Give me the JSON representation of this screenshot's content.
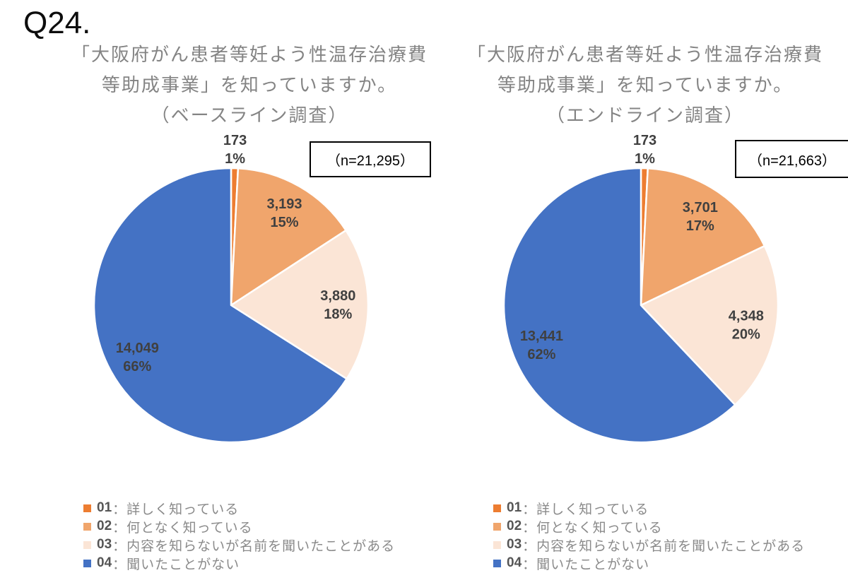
{
  "question_label": "Q24.",
  "styles": {
    "slice_label_color": "#404040",
    "title_color": "#848484",
    "box_border_color": "#000000"
  },
  "legend": {
    "items": [
      {
        "num": "01",
        "text": "：詳しく知っている",
        "color": "#ED7D31"
      },
      {
        "num": "02",
        "text": "：何となく知っている",
        "color": "#F0A56C"
      },
      {
        "num": "03",
        "text": "：内容を知らないが名前を聞いたことがある",
        "color": "#FBE5D6"
      },
      {
        "num": "04",
        "text": "：聞いたことがない",
        "color": "#4472C4"
      }
    ]
  },
  "chart_data": [
    {
      "type": "pie",
      "title_lines": [
        "「大阪府がん患者等妊よう性温存治療費",
        "等助成事業」を知っていますか。",
        "（ベースライン調査）"
      ],
      "n_label": "（n=21,295）",
      "n": 21295,
      "categories": [
        "01：詳しく知っている",
        "02：何となく知っている",
        "03：内容を知らないが名前を聞いたことがある",
        "04：聞いたことがない"
      ],
      "values": [
        173,
        3193,
        3880,
        14049
      ],
      "value_labels": [
        "173",
        "3,193",
        "3,880",
        "14,049"
      ],
      "pct_labels": [
        "1%",
        "15%",
        "18%",
        "66%"
      ],
      "colors": [
        "#ED7D31",
        "#F0A56C",
        "#FBE5D6",
        "#4472C4"
      ],
      "start_angle_deg": 0,
      "direction": "clockwise",
      "legend_position": "bottom-left"
    },
    {
      "type": "pie",
      "title_lines": [
        "「大阪府がん患者等妊よう性温存治療費",
        "等助成事業」を知っていますか。",
        "（エンドライン調査）"
      ],
      "n_label": "（n=21,663）",
      "n": 21663,
      "categories": [
        "01：詳しく知っている",
        "02：何となく知っている",
        "03：内容を知らないが名前を聞いたことがある",
        "04：聞いたことがない"
      ],
      "values": [
        173,
        3701,
        4348,
        13441
      ],
      "value_labels": [
        "173",
        "3,701",
        "4,348",
        "13,441"
      ],
      "pct_labels": [
        "1%",
        "17%",
        "20%",
        "62%"
      ],
      "colors": [
        "#ED7D31",
        "#F0A56C",
        "#FBE5D6",
        "#4472C4"
      ],
      "start_angle_deg": 0,
      "direction": "clockwise",
      "legend_position": "bottom-left"
    }
  ]
}
